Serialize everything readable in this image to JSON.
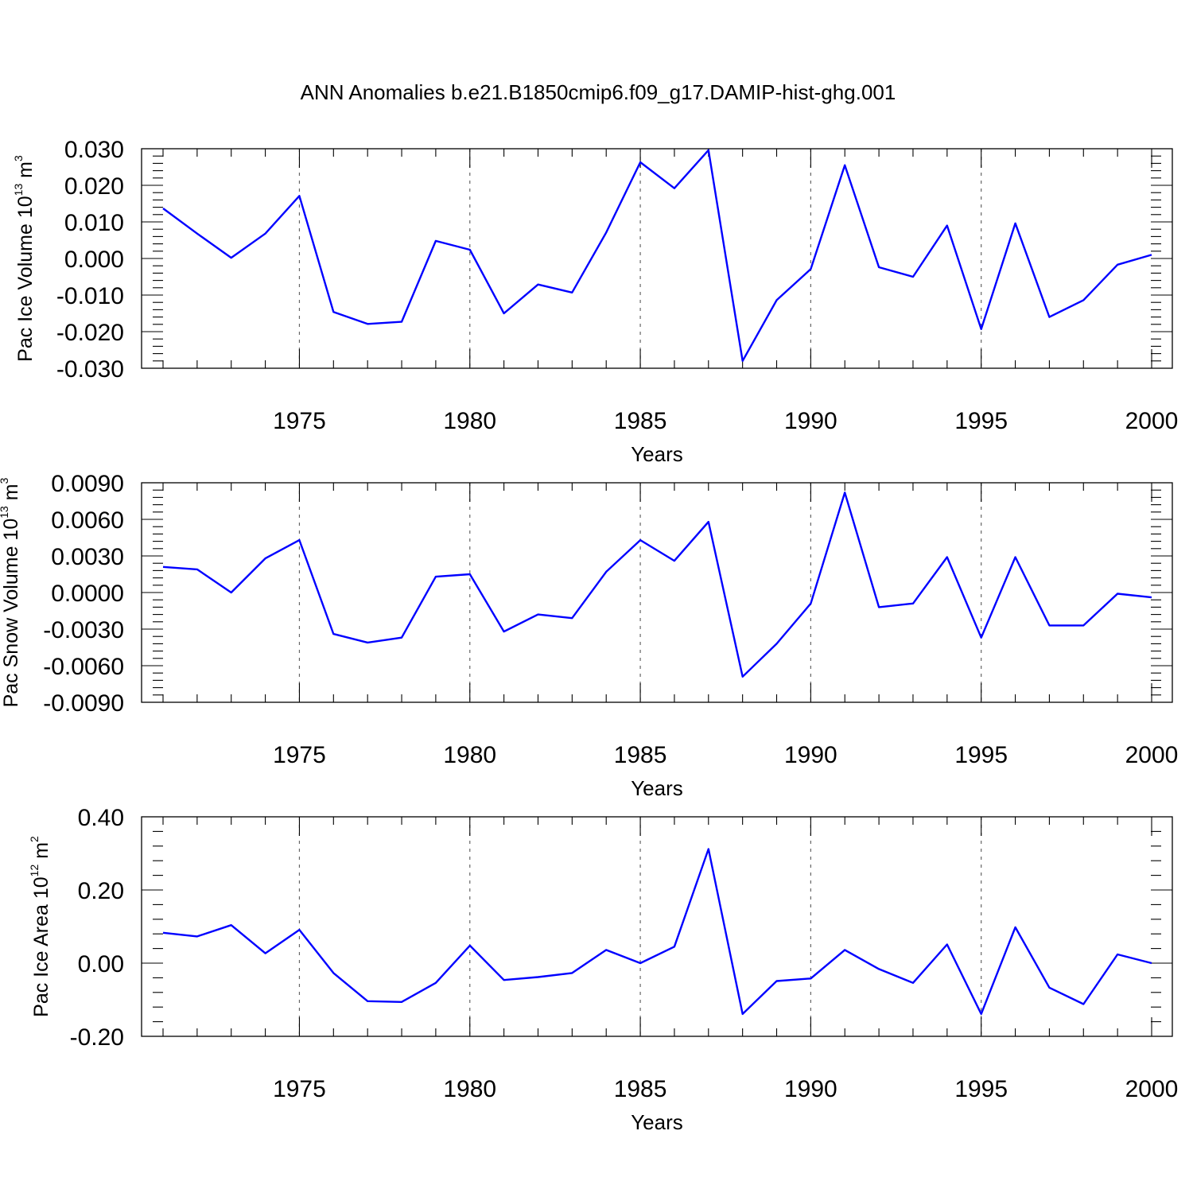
{
  "title": "ANN Anomalies b.e21.B1850cmip6.f09_g17.DAMIP-hist-ghg.001",
  "colors": {
    "series": "#0000ff",
    "axis": "#000000",
    "grid": "#666666"
  },
  "chart_data": [
    {
      "type": "line",
      "ylabel_main": "Pac Ice Volume 10",
      "ylabel_exp": "13",
      "ylabel_unit": " m",
      "ylabel_unit_exp": "3",
      "xlabel": "Years",
      "xlim": [
        1971,
        2000
      ],
      "ylim": [
        -0.03,
        0.03
      ],
      "yticks": [
        -0.03,
        -0.02,
        -0.01,
        0.0,
        0.01,
        0.02,
        0.03
      ],
      "yticklabels": [
        "-0.030",
        "-0.020",
        "-0.010",
        "0.000",
        "0.010",
        "0.020",
        "0.030"
      ],
      "xticks": [
        1975,
        1980,
        1985,
        1990,
        1995,
        2000
      ],
      "xticklabels": [
        "1975",
        "1980",
        "1985",
        "1990",
        "1995",
        "2000"
      ],
      "grid": "vertical dashed at major x ticks",
      "x": [
        1971,
        1972,
        1973,
        1974,
        1975,
        1976,
        1977,
        1978,
        1979,
        1980,
        1981,
        1982,
        1983,
        1984,
        1985,
        1986,
        1987,
        1988,
        1989,
        1990,
        1991,
        1992,
        1993,
        1994,
        1995,
        1996,
        1997,
        1998,
        1999,
        2000
      ],
      "y": [
        0.0137,
        0.0068,
        0.0002,
        0.0068,
        0.0171,
        -0.0146,
        -0.0179,
        -0.0173,
        0.0048,
        0.0024,
        -0.015,
        -0.0071,
        -0.0093,
        0.0071,
        0.0263,
        0.0192,
        0.0296,
        -0.028,
        -0.0114,
        -0.0029,
        0.0255,
        -0.0024,
        -0.005,
        0.009,
        -0.0193,
        0.0096,
        -0.016,
        -0.0114,
        -0.0017,
        0.001
      ]
    },
    {
      "type": "line",
      "ylabel_main": "Pac Snow Volume 10",
      "ylabel_exp": "13",
      "ylabel_unit": " m",
      "ylabel_unit_exp": "3",
      "xlabel": "Years",
      "xlim": [
        1971,
        2000
      ],
      "ylim": [
        -0.009,
        0.009
      ],
      "yticks": [
        -0.009,
        -0.006,
        -0.003,
        0.0,
        0.003,
        0.006,
        0.009
      ],
      "yticklabels": [
        "-0.0090",
        "-0.0060",
        "-0.0030",
        "0.0000",
        "0.0030",
        "0.0060",
        "0.0090"
      ],
      "xticks": [
        1975,
        1980,
        1985,
        1990,
        1995,
        2000
      ],
      "xticklabels": [
        "1975",
        "1980",
        "1985",
        "1990",
        "1995",
        "2000"
      ],
      "grid": "vertical dashed at major x ticks",
      "x": [
        1971,
        1972,
        1973,
        1974,
        1975,
        1976,
        1977,
        1978,
        1979,
        1980,
        1981,
        1982,
        1983,
        1984,
        1985,
        1986,
        1987,
        1988,
        1989,
        1990,
        1991,
        1992,
        1993,
        1994,
        1995,
        1996,
        1997,
        1998,
        1999,
        2000
      ],
      "y": [
        0.0021,
        0.0019,
        0.0,
        0.0028,
        0.0043,
        -0.0034,
        -0.0041,
        -0.0037,
        0.0013,
        0.0015,
        -0.0032,
        -0.0018,
        -0.0021,
        0.0017,
        0.0043,
        0.0026,
        0.0058,
        -0.0069,
        -0.0042,
        -0.0009,
        0.0082,
        -0.0012,
        -0.0009,
        0.0029,
        -0.0037,
        0.0029,
        -0.0027,
        -0.0027,
        -0.0001,
        -0.0004
      ]
    },
    {
      "type": "line",
      "ylabel_main": "Pac Ice Area 10",
      "ylabel_exp": "12",
      "ylabel_unit": " m",
      "ylabel_unit_exp": "2",
      "xlabel": "Years",
      "xlim": [
        1971,
        2000
      ],
      "ylim": [
        -0.2,
        0.4
      ],
      "yticks": [
        -0.2,
        0.0,
        0.2,
        0.4
      ],
      "yticklabels": [
        "-0.20",
        "0.00",
        "0.20",
        "0.40"
      ],
      "xticks": [
        1975,
        1980,
        1985,
        1990,
        1995,
        2000
      ],
      "xticklabels": [
        "1975",
        "1980",
        "1985",
        "1990",
        "1995",
        "2000"
      ],
      "grid": "vertical dashed at major x ticks",
      "x": [
        1971,
        1972,
        1973,
        1974,
        1975,
        1976,
        1977,
        1978,
        1979,
        1980,
        1981,
        1982,
        1983,
        1984,
        1985,
        1986,
        1987,
        1988,
        1989,
        1990,
        1991,
        1992,
        1993,
        1994,
        1995,
        1996,
        1997,
        1998,
        1999,
        2000
      ],
      "y": [
        0.083,
        0.073,
        0.104,
        0.027,
        0.091,
        -0.027,
        -0.104,
        -0.106,
        -0.054,
        0.048,
        -0.046,
        -0.038,
        -0.027,
        0.036,
        0.0,
        0.045,
        0.312,
        -0.139,
        -0.049,
        -0.042,
        0.036,
        -0.016,
        -0.054,
        0.051,
        -0.139,
        0.098,
        -0.067,
        -0.112,
        0.024,
        0.0
      ]
    }
  ]
}
